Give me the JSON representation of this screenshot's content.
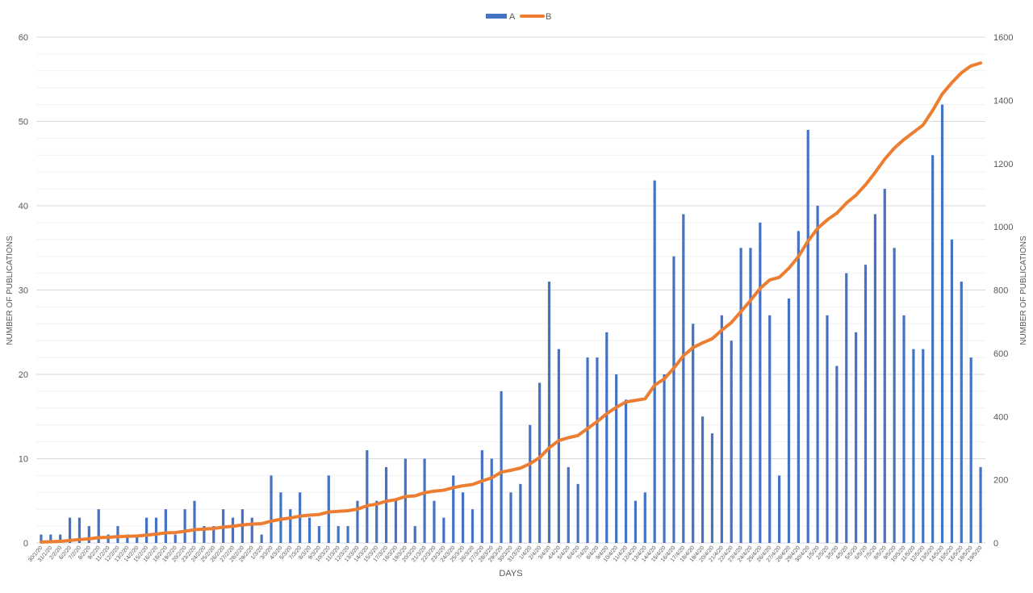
{
  "chart_data": {
    "type": "bar",
    "title": "",
    "xlabel": "DAYS",
    "ylabel": "NUMBER OF PUBLICATIONS",
    "y2label": "NUMBER OF PUBLICATIONS",
    "ylim": [
      0,
      60
    ],
    "y2lim": [
      0,
      1600
    ],
    "yticks": [
      0,
      10,
      20,
      30,
      40,
      50,
      60
    ],
    "y2ticks": [
      0,
      200,
      400,
      600,
      800,
      1000,
      1200,
      1400,
      1600
    ],
    "grid": true,
    "legend": "top-center",
    "colors": {
      "A": "#4472C4",
      "B": "#ED7D31"
    },
    "categories": [
      "30/1/20",
      "31/1/20",
      "2/2/20",
      "6/2/20",
      "7/2/20",
      "8/2/20",
      "9/2/20",
      "11/2/20",
      "12/2/20",
      "13/2/20",
      "14/2/20",
      "15/2/20",
      "16/2/20",
      "18/2/20",
      "19/2/20",
      "20/2/20",
      "23/2/20",
      "24/2/20",
      "25/2/20",
      "26/2/20",
      "27/2/20",
      "28/2/20",
      "29/2/20",
      "1/3/20",
      "3/3/20",
      "4/3/20",
      "5/3/20",
      "7/3/20",
      "8/3/20",
      "9/3/20",
      "10/3/20",
      "11/3/20",
      "12/3/20",
      "13/3/20",
      "14/3/20",
      "15/3/20",
      "17/3/20",
      "18/3/20",
      "19/3/20",
      "20/3/20",
      "21/3/20",
      "22/3/20",
      "23/3/20",
      "24/3/20",
      "25/3/20",
      "26/3/20",
      "27/3/20",
      "28/3/20",
      "29/3/20",
      "30/3/20",
      "31/3/20",
      "1/4/20",
      "2/4/20",
      "3/4/20",
      "4/4/20",
      "5/4/20",
      "6/4/20",
      "7/4/20",
      "8/4/20",
      "9/4/20",
      "10/4/20",
      "11/4/20",
      "12/4/20",
      "13/4/20",
      "14/4/20",
      "15/4/20",
      "16/4/20",
      "17/4/20",
      "18/4/20",
      "19/4/20",
      "20/4/20",
      "21/4/20",
      "22/4/20",
      "23/4/20",
      "24/4/20",
      "25/4/20",
      "26/4/20",
      "27/4/20",
      "28/4/20",
      "29/4/20",
      "30/4/20",
      "1/5/20",
      "2/5/20",
      "3/5/20",
      "4/5/20",
      "5/5/20",
      "6/5/20",
      "7/5/20",
      "8/5/20",
      "9/5/20",
      "10/5/20",
      "11/5/20",
      "12/5/20",
      "13/5/20",
      "14/5/20",
      "15/5/20",
      "16/5/20",
      "18/5/20",
      "19/5/20"
    ],
    "series": [
      {
        "name": "A",
        "type": "bar",
        "axis": "left",
        "values": [
          1,
          1,
          1,
          3,
          3,
          2,
          4,
          1,
          2,
          1,
          1,
          3,
          3,
          4,
          1,
          4,
          5,
          2,
          2,
          4,
          3,
          4,
          3,
          1,
          8,
          6,
          4,
          6,
          3,
          2,
          8,
          2,
          2,
          5,
          11,
          5,
          9,
          5,
          10,
          2,
          10,
          5,
          3,
          8,
          6,
          4,
          11,
          10,
          18,
          6,
          7,
          14,
          19,
          31,
          23,
          9,
          7,
          22,
          22,
          25,
          20,
          17,
          5,
          6,
          43,
          20,
          34,
          39,
          26,
          15,
          13,
          27,
          24,
          35,
          35,
          38,
          27,
          8,
          29,
          37,
          49,
          40,
          27,
          21,
          32,
          25,
          33,
          39,
          42,
          35,
          27,
          23,
          23,
          46,
          52,
          36,
          31,
          22,
          9
        ]
      },
      {
        "name": "B",
        "type": "line",
        "axis": "right",
        "values": [
          3,
          4,
          5,
          8,
          11,
          13,
          17,
          18,
          20,
          21,
          22,
          25,
          28,
          32,
          33,
          37,
          42,
          44,
          46,
          50,
          53,
          57,
          60,
          61,
          69,
          75,
          79,
          85,
          88,
          90,
          98,
          100,
          102,
          107,
          118,
          123,
          132,
          137,
          147,
          149,
          159,
          164,
          167,
          175,
          181,
          185,
          196,
          206,
          224,
          230,
          237,
          251,
          270,
          301,
          324,
          333,
          340,
          362,
          384,
          409,
          429,
          446,
          451,
          456,
          499,
          519,
          553,
          592,
          618,
          633,
          646,
          673,
          697,
          732,
          767,
          805,
          832,
          840,
          869,
          906,
          955,
          995,
          1022,
          1043,
          1075,
          1100,
          1133,
          1172,
          1214,
          1249,
          1276,
          1299,
          1322,
          1368,
          1420,
          1456,
          1487,
          1509,
          1518
        ]
      }
    ]
  }
}
